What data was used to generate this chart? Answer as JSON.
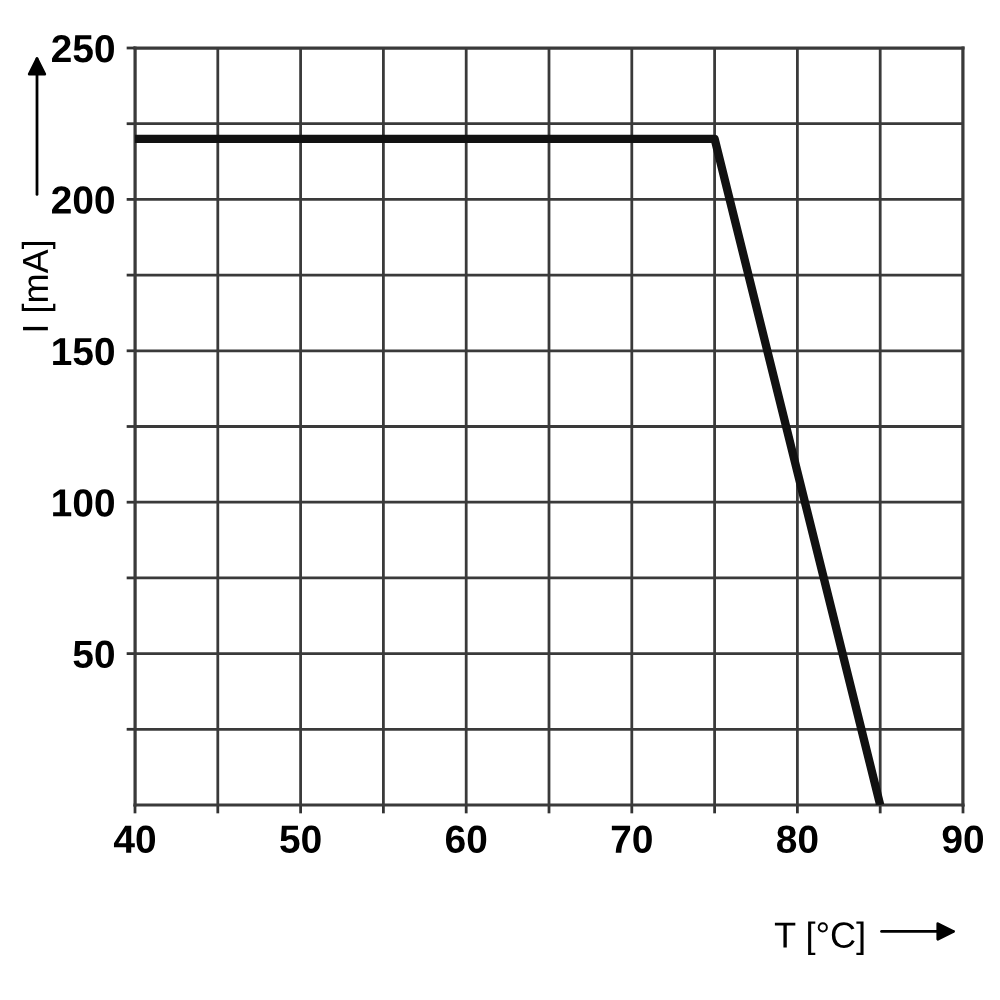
{
  "chart_data": {
    "type": "line",
    "xlabel": "T [°C]",
    "ylabel": "I [mA]",
    "x": [
      40,
      75,
      85
    ],
    "series": [
      {
        "color": "#111111",
        "values": [
          220,
          220,
          0
        ]
      }
    ],
    "xlim": [
      40,
      90
    ],
    "xticks": [
      40,
      {
        "value": 45,
        "label": null
      },
      50,
      {
        "value": 55,
        "label": null
      },
      60,
      {
        "value": 65,
        "label": null
      },
      70,
      {
        "value": 75,
        "label": null
      },
      80,
      {
        "value": 85,
        "label": null
      },
      90
    ],
    "ylim": [
      0,
      250
    ],
    "yticks": [
      {
        "value": 25,
        "label": null
      },
      50,
      {
        "value": 75,
        "label": null
      },
      100,
      {
        "value": 125,
        "label": null
      },
      150,
      {
        "value": 175,
        "label": null
      },
      200,
      {
        "value": 225,
        "label": null
      },
      250
    ],
    "grid": true,
    "marker": "none",
    "line_style": "solid"
  }
}
